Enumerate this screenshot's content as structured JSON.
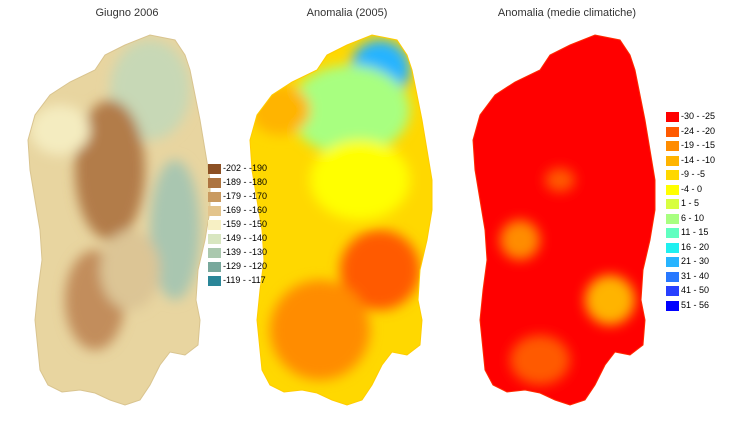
{
  "panels": [
    {
      "title": "Giugno 2006",
      "legend": [
        {
          "label": "-202 - -190",
          "color": "#8c5024"
        },
        {
          "label": "-189 - -180",
          "color": "#ad7440"
        },
        {
          "label": "-179 - -170",
          "color": "#c99a60"
        },
        {
          "label": "-169 - -160",
          "color": "#e3c48c"
        },
        {
          "label": "-159 - -150",
          "color": "#f7f0c4"
        },
        {
          "label": "-149 - -140",
          "color": "#d8e6c0"
        },
        {
          "label": "-139 - -130",
          "color": "#aac8ae"
        },
        {
          "label": "-129 - -120",
          "color": "#78a89c"
        },
        {
          "label": "-119 - -117",
          "color": "#2a8698"
        }
      ]
    },
    {
      "title": "Anomalia (2005)"
    },
    {
      "title": "Anomalia (medie climatiche)",
      "legend": [
        {
          "label": "-30 - -25",
          "color": "#ff0000"
        },
        {
          "label": "-24 - -20",
          "color": "#ff5a00"
        },
        {
          "label": "-19 - -15",
          "color": "#ff8c00"
        },
        {
          "label": "-14 - -10",
          "color": "#ffb400"
        },
        {
          "label": "-9 - -5",
          "color": "#ffd800"
        },
        {
          "label": "-4 - 0",
          "color": "#ffff00"
        },
        {
          "label": "1 - 5",
          "color": "#d8ff40"
        },
        {
          "label": "6 - 10",
          "color": "#a8ff80"
        },
        {
          "label": "11 - 15",
          "color": "#60ffc0"
        },
        {
          "label": "16 - 20",
          "color": "#20f0f0"
        },
        {
          "label": "21 - 30",
          "color": "#28b4ff"
        },
        {
          "label": "31 - 40",
          "color": "#2878ff"
        },
        {
          "label": "41 - 50",
          "color": "#2840ff"
        },
        {
          "label": "51 - 56",
          "color": "#0000ff"
        }
      ]
    }
  ]
}
